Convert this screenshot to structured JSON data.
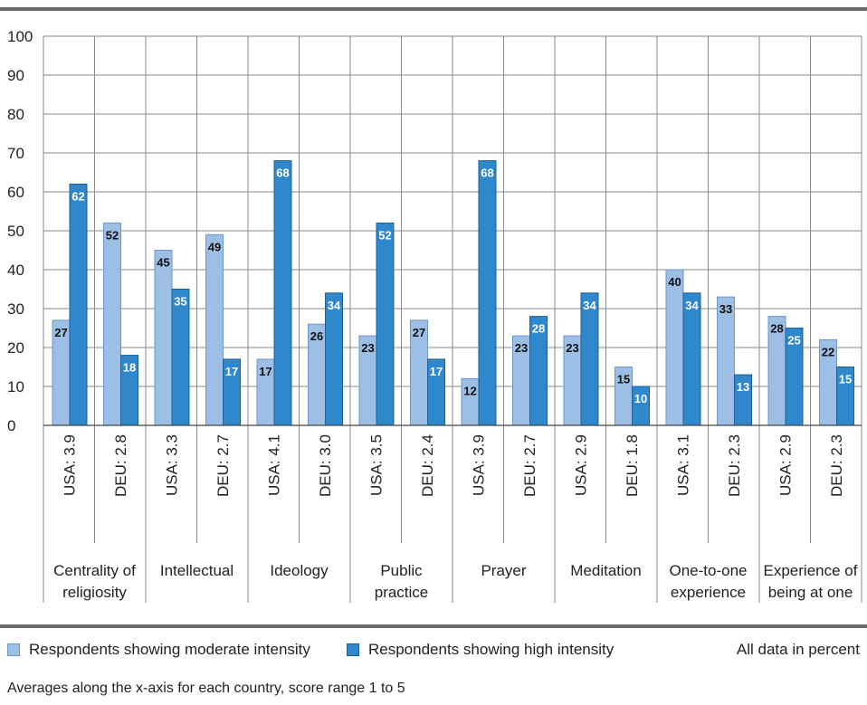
{
  "chart_data": {
    "type": "bar",
    "ylim": [
      0,
      100
    ],
    "yticks": [
      0,
      10,
      20,
      30,
      40,
      50,
      60,
      70,
      80,
      90,
      100
    ],
    "grid": true,
    "groups": [
      {
        "label": "Centrality of religiosity",
        "label_lines": [
          "Centrality of",
          "religiosity"
        ]
      },
      {
        "label": "Intellectual",
        "label_lines": [
          "Intellectual"
        ]
      },
      {
        "label": "Ideology",
        "label_lines": [
          "Ideology"
        ]
      },
      {
        "label": "Public practice",
        "label_lines": [
          "Public",
          "practice"
        ]
      },
      {
        "label": "Prayer",
        "label_lines": [
          "Prayer"
        ]
      },
      {
        "label": "Meditation",
        "label_lines": [
          "Meditation"
        ]
      },
      {
        "label": "One-to-one experience",
        "label_lines": [
          "One-to-one",
          "experience"
        ]
      },
      {
        "label": "Experience of being at one",
        "label_lines": [
          "Experience of",
          "being at one"
        ]
      }
    ],
    "categories": [
      "USA: 3.9",
      "DEU: 2.8",
      "USA: 3.3",
      "DEU: 2.7",
      "USA: 4.1",
      "DEU: 3.0",
      "USA: 3.5",
      "DEU: 2.4",
      "USA: 3.9",
      "DEU: 2.7",
      "USA: 2.9",
      "DEU: 1.8",
      "USA: 3.1",
      "DEU: 2.3",
      "USA: 2.9",
      "DEU: 2.3"
    ],
    "series": [
      {
        "name": "Respondents showing moderate intensity",
        "color": "#9dbfe6",
        "values": [
          27,
          52,
          45,
          49,
          17,
          26,
          23,
          27,
          12,
          23,
          23,
          15,
          40,
          33,
          28,
          22
        ]
      },
      {
        "name": "Respondents showing high intensity",
        "color": "#2f87cc",
        "values": [
          62,
          18,
          35,
          17,
          68,
          34,
          52,
          17,
          68,
          28,
          34,
          10,
          34,
          13,
          25,
          15
        ]
      }
    ]
  },
  "legend": {
    "moderate": "Respondents showing moderate intensity",
    "high": "Respondents showing high intensity",
    "moderate_color": "#9dbfe6",
    "high_color": "#2f87cc"
  },
  "units_note": "All data in percent",
  "footnote": "Averages along the x-axis for each country, score range 1 to 5"
}
